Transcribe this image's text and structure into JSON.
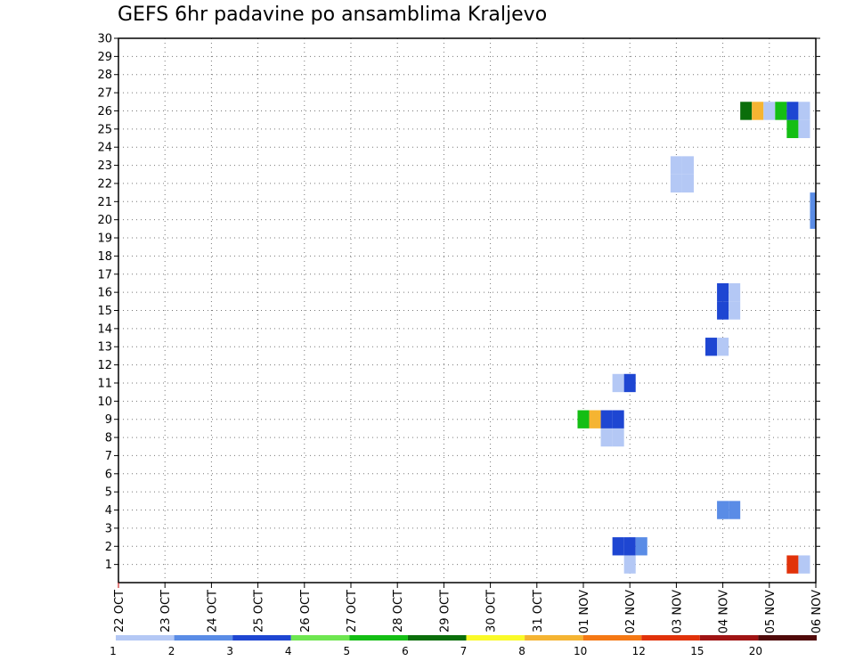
{
  "chart_data": {
    "type": "heatmap",
    "title": "GEFS 6hr padavine po ansamblima Kraljevo",
    "xlabel": "",
    "ylabel": "",
    "x_ticks": [
      "22 OCT",
      "23 OCT",
      "24 OCT",
      "25 OCT",
      "26 OCT",
      "27 OCT",
      "28 OCT",
      "29 OCT",
      "30 OCT",
      "31 OCT",
      "01 NOV",
      "02 NOV",
      "03 NOV",
      "04 NOV",
      "05 NOV",
      "06 NOV"
    ],
    "x_range_days": [
      0,
      15
    ],
    "y_ticks": [
      1,
      2,
      3,
      4,
      5,
      6,
      7,
      8,
      9,
      10,
      11,
      12,
      13,
      14,
      15,
      16,
      17,
      18,
      19,
      20,
      21,
      22,
      23,
      24,
      25,
      26,
      27,
      28,
      29,
      30
    ],
    "y_range": [
      0,
      30
    ],
    "grid": true,
    "color_scale": {
      "labels": [
        "1",
        "2",
        "3",
        "4",
        "5",
        "6",
        "7",
        "8",
        "10",
        "12",
        "15",
        "20"
      ],
      "colors": [
        "#b4c8f5",
        "#5a8ce6",
        "#1e46d2",
        "#6ee650",
        "#14be14",
        "#0a6e0a",
        "#fafa28",
        "#f5b432",
        "#f57814",
        "#e1320a",
        "#a01414",
        "#500a0a"
      ]
    },
    "points": [
      {
        "x": "2025-11-02T00:00",
        "y": 1,
        "cat": 1
      },
      {
        "x": "2025-11-05T12:00",
        "y": 1,
        "cat": 10
      },
      {
        "x": "2025-11-05T18:00",
        "y": 1,
        "cat": 1
      },
      {
        "x": "2025-11-01T18:00",
        "y": 2,
        "cat": 3
      },
      {
        "x": "2025-11-02T00:00",
        "y": 2,
        "cat": 3
      },
      {
        "x": "2025-11-02T06:00",
        "y": 2,
        "cat": 2
      },
      {
        "x": "2025-11-04T00:00",
        "y": 4,
        "cat": 2
      },
      {
        "x": "2025-11-04T06:00",
        "y": 4,
        "cat": 2
      },
      {
        "x": "2025-11-01T12:00",
        "y": 8,
        "cat": 1
      },
      {
        "x": "2025-11-01T18:00",
        "y": 8,
        "cat": 1
      },
      {
        "x": "2025-11-01T00:00",
        "y": 9,
        "cat": 5
      },
      {
        "x": "2025-11-01T06:00",
        "y": 9,
        "cat": 8
      },
      {
        "x": "2025-11-01T12:00",
        "y": 9,
        "cat": 3
      },
      {
        "x": "2025-11-01T18:00",
        "y": 9,
        "cat": 3
      },
      {
        "x": "2025-11-01T18:00",
        "y": 11,
        "cat": 1
      },
      {
        "x": "2025-11-02T00:00",
        "y": 11,
        "cat": 3
      },
      {
        "x": "2025-11-03T18:00",
        "y": 13,
        "cat": 3
      },
      {
        "x": "2025-11-04T00:00",
        "y": 13,
        "cat": 1
      },
      {
        "x": "2025-11-04T00:00",
        "y": 15,
        "cat": 3
      },
      {
        "x": "2025-11-04T06:00",
        "y": 15,
        "cat": 1
      },
      {
        "x": "2025-11-04T00:00",
        "y": 16,
        "cat": 3
      },
      {
        "x": "2025-11-04T06:00",
        "y": 16,
        "cat": 1
      },
      {
        "x": "2025-11-06T00:00",
        "y": 20,
        "cat": 2
      },
      {
        "x": "2025-11-06T00:00",
        "y": 21,
        "cat": 2
      },
      {
        "x": "2025-11-03T00:00",
        "y": 22,
        "cat": 1
      },
      {
        "x": "2025-11-03T06:00",
        "y": 22,
        "cat": 1
      },
      {
        "x": "2025-11-03T00:00",
        "y": 23,
        "cat": 1
      },
      {
        "x": "2025-11-03T06:00",
        "y": 23,
        "cat": 1
      },
      {
        "x": "2025-11-05T12:00",
        "y": 25,
        "cat": 5
      },
      {
        "x": "2025-11-05T18:00",
        "y": 25,
        "cat": 1
      },
      {
        "x": "2025-11-04T12:00",
        "y": 26,
        "cat": 6
      },
      {
        "x": "2025-11-04T18:00",
        "y": 26,
        "cat": 8
      },
      {
        "x": "2025-11-05T00:00",
        "y": 26,
        "cat": 1
      },
      {
        "x": "2025-11-05T06:00",
        "y": 26,
        "cat": 5
      },
      {
        "x": "2025-11-05T12:00",
        "y": 26,
        "cat": 3
      },
      {
        "x": "2025-11-05T18:00",
        "y": 26,
        "cat": 1
      }
    ]
  }
}
